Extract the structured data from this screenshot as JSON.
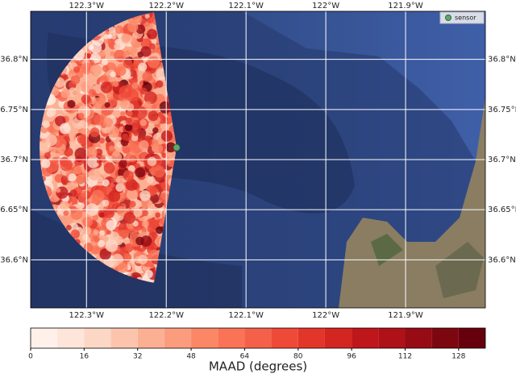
{
  "chart_data": {
    "type": "map",
    "xlim": [
      -122.37,
      -121.8
    ],
    "ylim": [
      36.552,
      36.848
    ],
    "xticks": [
      {
        "value": -122.3,
        "label": "122.3°W"
      },
      {
        "value": -122.2,
        "label": "122.2°W"
      },
      {
        "value": -122.1,
        "label": "122.1°W"
      },
      {
        "value": -122.0,
        "label": "122°W"
      },
      {
        "value": -121.9,
        "label": "121.9°W"
      }
    ],
    "yticks": [
      {
        "value": 36.6,
        "label": "36.6°N"
      },
      {
        "value": 36.65,
        "label": "36.65°N"
      },
      {
        "value": 36.7,
        "label": "36.7°N"
      },
      {
        "value": 36.75,
        "label": "36.75°N"
      },
      {
        "value": 36.8,
        "label": "36.8°N"
      }
    ],
    "grid": true,
    "legend": "upper right",
    "series": [
      {
        "name": "sensor",
        "color": "#5fa86a",
        "x": [
          -122.187
        ],
        "y": [
          36.712
        ]
      }
    ],
    "colorbar": {
      "label": "MAAD (degrees)",
      "levels": [
        0,
        8,
        16,
        24,
        32,
        40,
        48,
        56,
        64,
        72,
        80,
        88,
        96,
        104,
        112,
        120,
        128,
        136
      ],
      "ticks": [
        0,
        16,
        32,
        48,
        64,
        80,
        96,
        112,
        128
      ],
      "colors": [
        "#fff0ea",
        "#fee5da",
        "#fdd7c6",
        "#fcc4ad",
        "#fcb093",
        "#fc9c7e",
        "#fb8767",
        "#fa7356",
        "#f5604a",
        "#ef4a38",
        "#e2362a",
        "#d32621",
        "#bf161b",
        "#ae1118",
        "#960b14",
        "#7d0711",
        "#67000d"
      ]
    }
  }
}
